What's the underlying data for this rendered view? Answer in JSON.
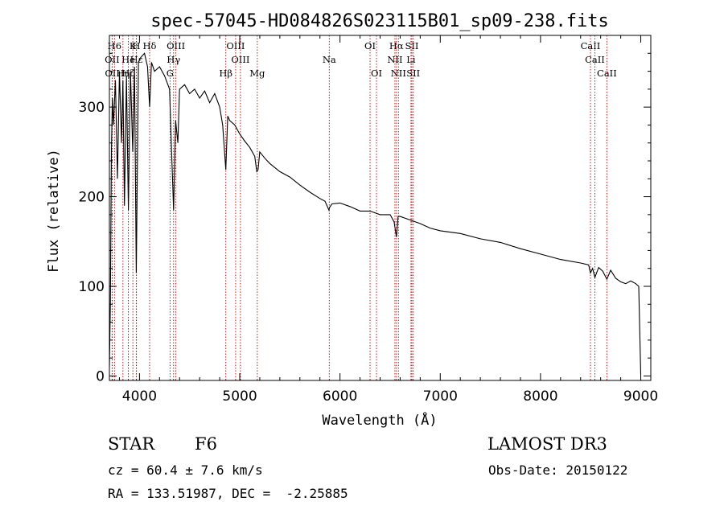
{
  "chart_data": {
    "type": "line",
    "title": "spec-57045-HD084826S023115B01_sp09-238.fits",
    "xlabel": "Wavelength (Å)",
    "ylabel": "Flux (relative)",
    "xlim": [
      3700,
      9100
    ],
    "ylim": [
      -5,
      380
    ],
    "xticks": [
      4000,
      5000,
      6000,
      7000,
      8000,
      9000
    ],
    "yticks": [
      0,
      100,
      200,
      300
    ],
    "grid": false,
    "series": [
      {
        "name": "spectrum",
        "x": [
          3700,
          3710,
          3720,
          3730,
          3740,
          3760,
          3780,
          3800,
          3820,
          3835,
          3850,
          3870,
          3889,
          3910,
          3933,
          3950,
          3968,
          3990,
          4010,
          4050,
          4080,
          4101,
          4120,
          4150,
          4200,
          4250,
          4300,
          4320,
          4340,
          4360,
          4383,
          4400,
          4450,
          4500,
          4550,
          4600,
          4650,
          4700,
          4750,
          4800,
          4830,
          4861,
          4880,
          4900,
          4950,
          5000,
          5050,
          5100,
          5150,
          5170,
          5183,
          5200,
          5250,
          5300,
          5400,
          5500,
          5600,
          5700,
          5800,
          5850,
          5890,
          5896,
          5920,
          6000,
          6100,
          6200,
          6300,
          6400,
          6500,
          6540,
          6563,
          6580,
          6600,
          6700,
          6800,
          6900,
          7000,
          7200,
          7400,
          7600,
          7800,
          8000,
          8200,
          8400,
          8480,
          8498,
          8520,
          8542,
          8580,
          8620,
          8662,
          8700,
          8750,
          8800,
          8850,
          8900,
          8950,
          8980,
          9000
        ],
        "values": [
          10,
          80,
          250,
          310,
          280,
          330,
          220,
          340,
          260,
          330,
          190,
          335,
          185,
          340,
          250,
          345,
          115,
          350,
          355,
          360,
          345,
          300,
          350,
          340,
          345,
          335,
          320,
          250,
          185,
          285,
          260,
          320,
          325,
          315,
          320,
          310,
          318,
          305,
          315,
          300,
          280,
          230,
          290,
          285,
          280,
          270,
          262,
          255,
          245,
          228,
          230,
          250,
          243,
          237,
          228,
          222,
          213,
          205,
          198,
          195,
          185,
          188,
          192,
          193,
          189,
          184,
          184,
          180,
          180,
          172,
          155,
          178,
          178,
          174,
          170,
          165,
          162,
          159,
          153,
          149,
          142,
          136,
          130,
          126,
          124,
          115,
          120,
          110,
          121,
          117,
          108,
          118,
          109,
          105,
          103,
          106,
          103,
          100,
          2
        ]
      }
    ],
    "line_markers": [
      {
        "name": "H6",
        "x": 3751,
        "row": 1
      },
      {
        "name": "OII",
        "x": 3727,
        "row": 2
      },
      {
        "name": "OII",
        "x": 3729,
        "row": 3
      },
      {
        "name": "K",
        "x": 3934,
        "row": 1
      },
      {
        "name": "He",
        "x": 3889,
        "row": 2
      },
      {
        "name": "Hη",
        "x": 3835,
        "row": 3
      },
      {
        "name": "Hε",
        "x": 3970,
        "row": 2
      },
      {
        "name": "Hζ",
        "x": 3889,
        "row": 3
      },
      {
        "name": "H",
        "x": 3968,
        "row": 1
      },
      {
        "name": "Hδ",
        "x": 4101,
        "row": 1
      },
      {
        "name": "OIII",
        "x": 4363,
        "row": 1
      },
      {
        "name": "Hγ",
        "x": 4340,
        "row": 2
      },
      {
        "name": "G",
        "x": 4305,
        "row": 3
      },
      {
        "name": "OIII",
        "x": 4959,
        "row": 1
      },
      {
        "name": "OIII",
        "x": 5007,
        "row": 2
      },
      {
        "name": "Hβ",
        "x": 4861,
        "row": 3
      },
      {
        "name": "Mg",
        "x": 5175,
        "row": 3
      },
      {
        "name": "Na",
        "x": 5893,
        "row": 2
      },
      {
        "name": "OI",
        "x": 6300,
        "row": 1
      },
      {
        "name": "OI",
        "x": 6364,
        "row": 3
      },
      {
        "name": "Hα",
        "x": 6563,
        "row": 1
      },
      {
        "name": "NII",
        "x": 6548,
        "row": 2
      },
      {
        "name": "NII",
        "x": 6583,
        "row": 3
      },
      {
        "name": "SII",
        "x": 6717,
        "row": 1
      },
      {
        "name": "Li",
        "x": 6708,
        "row": 2
      },
      {
        "name": "SII",
        "x": 6731,
        "row": 3
      },
      {
        "name": "CaII",
        "x": 8498,
        "row": 1
      },
      {
        "name": "CaII",
        "x": 8542,
        "row": 2
      },
      {
        "name": "CaII",
        "x": 8662,
        "row": 3
      }
    ]
  },
  "info": {
    "class": "STAR",
    "subclass": "F6",
    "survey": "LAMOST DR3",
    "cz": "cz = 60.4 ± 7.6 km/s",
    "obs_date": "Obs-Date: 20150122",
    "radec": "RA = 133.51987, DEC =  -2.25885"
  }
}
